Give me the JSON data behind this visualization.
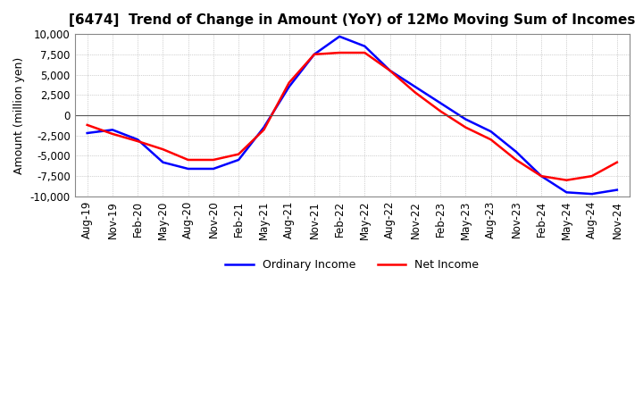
{
  "title": "[6474]  Trend of Change in Amount (YoY) of 12Mo Moving Sum of Incomes",
  "ylabel": "Amount (million yen)",
  "ylim": [
    -10000,
    10000
  ],
  "yticks": [
    -10000,
    -7500,
    -5000,
    -2500,
    0,
    2500,
    5000,
    7500,
    10000
  ],
  "background_color": "#ffffff",
  "grid_color": "#aaaaaa",
  "line_color_ordinary": "#0000ff",
  "line_color_net": "#ff0000",
  "legend_ordinary": "Ordinary Income",
  "legend_net": "Net Income",
  "x_labels": [
    "Aug-19",
    "Nov-19",
    "Feb-20",
    "May-20",
    "Aug-20",
    "Nov-20",
    "Feb-21",
    "May-21",
    "Aug-21",
    "Nov-21",
    "Feb-22",
    "May-22",
    "Aug-22",
    "Nov-22",
    "Feb-23",
    "May-23",
    "Aug-23",
    "Nov-23",
    "Feb-24",
    "May-24",
    "Aug-24",
    "Nov-24"
  ],
  "ordinary_income": [
    -2200,
    -1800,
    -3000,
    -5800,
    -6600,
    -6600,
    -5500,
    -1500,
    3500,
    7500,
    9700,
    8500,
    5500,
    3500,
    1500,
    -500,
    -2000,
    -4500,
    -7500,
    -9500,
    -9700,
    -9200
  ],
  "net_income": [
    -1200,
    -2300,
    -3200,
    -4200,
    -5500,
    -5500,
    -4800,
    -1800,
    4000,
    7500,
    7700,
    7700,
    5500,
    2800,
    500,
    -1500,
    -3000,
    -5500,
    -7500,
    -8000,
    -7500,
    -5800
  ]
}
